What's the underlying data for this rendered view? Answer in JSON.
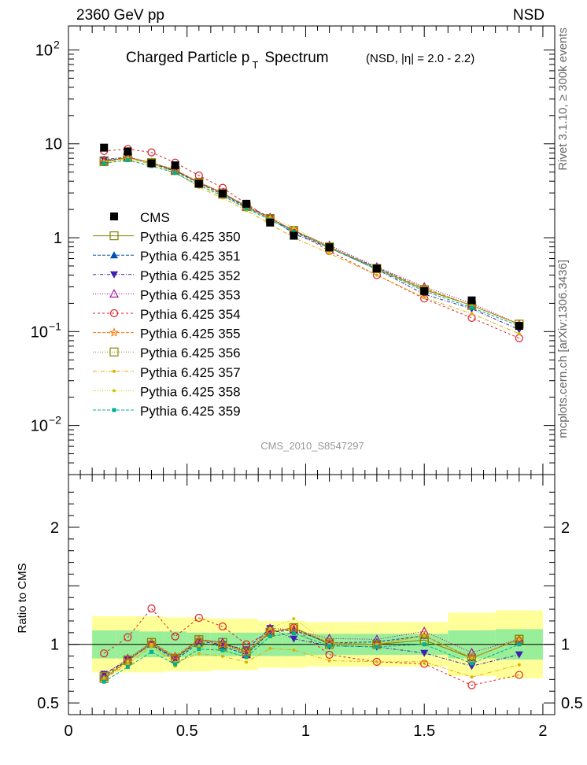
{
  "header": {
    "left": "2360 GeV pp",
    "right": "NSD"
  },
  "side_labels": {
    "rivet": "Rivet 3.1.10, ≥ 300k events",
    "mcplots": "mcplots.cern.ch [arXiv:1306.3436]"
  },
  "plot_title": {
    "main_prefix": "Charged Particle p",
    "main_sub": "T",
    "main_suffix": "Spectrum",
    "qualifier": "(NSD, |η| = 2.0 - 2.2)"
  },
  "analysis_id": "CMS_2010_S8547297",
  "ratio_ylabel": "Ratio to CMS",
  "chart_data": {
    "type": "scatter",
    "x_range": [
      0,
      2.05
    ],
    "y_log": true,
    "y_range": [
      0.003,
      180
    ],
    "y_ticks": [
      {
        "value": 0.01,
        "base": "10",
        "exp": "−2"
      },
      {
        "value": 0.1,
        "base": "10",
        "exp": "−1"
      },
      {
        "value": 1,
        "base": "1",
        "exp": ""
      },
      {
        "value": 10,
        "base": "10",
        "exp": ""
      },
      {
        "value": 100,
        "base": "10",
        "exp": "2"
      }
    ],
    "x_ticks": [
      "0",
      "0.5",
      "1",
      "1.5",
      "2"
    ],
    "x": [
      0.15,
      0.25,
      0.35,
      0.45,
      0.55,
      0.65,
      0.75,
      0.85,
      0.95,
      1.1,
      1.3,
      1.5,
      1.7,
      1.9
    ],
    "data": {
      "name": "CMS",
      "color": "#000000",
      "values": [
        9.1,
        8.3,
        6.2,
        5.9,
        3.75,
        2.95,
        2.3,
        1.45,
        1.05,
        0.79,
        0.47,
        0.27,
        0.215,
        0.115
      ]
    },
    "ratio": {
      "y_range": [
        0.4,
        2.45
      ],
      "ticks": [
        "0.5",
        "1",
        "2"
      ],
      "band_edges": [
        0.1,
        0.2,
        0.3,
        0.4,
        0.5,
        0.6,
        0.7,
        0.8,
        0.9,
        1.0,
        1.2,
        1.4,
        1.6,
        1.8,
        2.0
      ],
      "band_inner": [
        0.12,
        0.12,
        0.11,
        0.11,
        0.1,
        0.1,
        0.1,
        0.1,
        0.1,
        0.09,
        0.09,
        0.09,
        0.12,
        0.13
      ],
      "band_outer": [
        0.24,
        0.24,
        0.24,
        0.23,
        0.23,
        0.22,
        0.22,
        0.2,
        0.2,
        0.19,
        0.19,
        0.19,
        0.27,
        0.29
      ]
    },
    "series": [
      {
        "name": "Pythia 6.425 350",
        "color": "#808000",
        "marker": "open-square",
        "dash": "",
        "values": [
          6.45,
          7.15,
          6.3,
          5.2,
          3.9,
          3.0,
          2.15,
          1.6,
          1.2,
          0.79,
          0.47,
          0.28,
          0.19,
          0.12
        ]
      },
      {
        "name": "Pythia 6.425 351",
        "color": "#0050b0",
        "marker": "triangle-up",
        "dash": "4,2",
        "values": [
          6.6,
          7.2,
          6.2,
          5.1,
          3.8,
          2.9,
          2.1,
          1.6,
          1.18,
          0.8,
          0.48,
          0.29,
          0.19,
          0.12
        ]
      },
      {
        "name": "Pythia 6.425 352",
        "color": "#4020b0",
        "marker": "triangle-down",
        "dash": "4,2,1,2",
        "values": [
          6.8,
          7.2,
          6.2,
          5.2,
          3.85,
          2.95,
          2.2,
          1.65,
          1.1,
          0.78,
          0.46,
          0.25,
          0.175,
          0.105
        ]
      },
      {
        "name": "Pythia 6.425 353",
        "color": "#a000a0",
        "marker": "open-triangle",
        "dash": "1,2",
        "values": [
          6.7,
          7.3,
          6.3,
          5.3,
          3.9,
          3.0,
          2.1,
          1.65,
          1.18,
          0.83,
          0.49,
          0.3,
          0.2,
          0.12
        ]
      },
      {
        "name": "Pythia 6.425 354",
        "color": "#e0202a",
        "marker": "open-circle",
        "dash": "3,3",
        "values": [
          8.4,
          8.8,
          8.1,
          6.3,
          4.6,
          3.4,
          2.3,
          1.6,
          1.2,
          0.72,
          0.4,
          0.225,
          0.14,
          0.085
        ]
      },
      {
        "name": "Pythia 6.425 355",
        "color": "#ff7000",
        "marker": "open-star",
        "dash": "4,2",
        "values": [
          6.4,
          7.1,
          6.3,
          5.3,
          3.9,
          2.95,
          2.15,
          1.6,
          1.2,
          0.8,
          0.47,
          0.29,
          0.19,
          0.12
        ]
      },
      {
        "name": "Pythia 6.425 356",
        "color": "#8a8a00",
        "marker": "open-square",
        "dash": "1,2",
        "values": [
          6.6,
          7.2,
          6.3,
          5.2,
          3.8,
          2.9,
          2.15,
          1.6,
          1.2,
          0.8,
          0.47,
          0.28,
          0.19,
          0.12
        ]
      },
      {
        "name": "Pythia 6.425 357",
        "color": "#e0b000",
        "marker": "dot",
        "dash": "5,2,1,2",
        "values": [
          6.4,
          6.9,
          6.1,
          5.0,
          3.45,
          2.65,
          1.95,
          1.4,
          1.0,
          0.68,
          0.4,
          0.23,
          0.155,
          0.095
        ]
      },
      {
        "name": "Pythia 6.425 358",
        "color": "#c8c800",
        "marker": "dot",
        "dash": "1,2",
        "values": [
          6.5,
          7.1,
          6.2,
          4.8,
          3.7,
          2.8,
          2.05,
          1.65,
          1.28,
          0.79,
          0.47,
          0.29,
          0.19,
          0.12
        ]
      },
      {
        "name": "Pythia 6.425 359",
        "color": "#00b090",
        "marker": "small-square",
        "dash": "4,2",
        "values": [
          6.2,
          6.7,
          5.8,
          4.9,
          3.6,
          2.8,
          2.05,
          1.55,
          1.15,
          0.78,
          0.46,
          0.27,
          0.18,
          0.115
        ]
      }
    ]
  }
}
